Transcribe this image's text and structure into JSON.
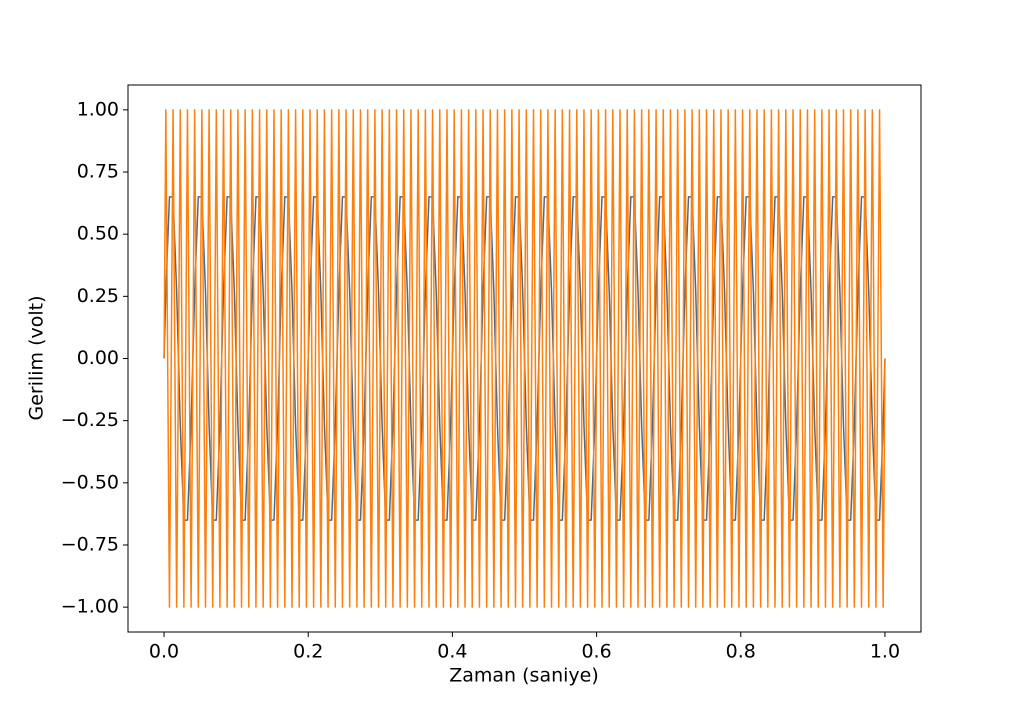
{
  "chart_data": {
    "type": "line",
    "x_label": "Zaman (saniye)",
    "y_label": "Gerilim (volt)",
    "x": [
      0,
      0.0025,
      0.0075,
      0.0125,
      0.0175,
      0.0225,
      0.0275,
      0.0325,
      0.0375,
      0.0425,
      0.0475,
      0.0525,
      0.0575,
      0.0625,
      0.0675,
      0.0725,
      0.0775,
      0.0825,
      0.0875,
      0.0925,
      0.0975,
      0.1025,
      0.1075,
      0.1125,
      0.1175,
      0.1225,
      0.1275,
      0.1325,
      0.1375,
      0.1425,
      0.1475,
      0.1525,
      0.1575,
      0.1625,
      0.1675,
      0.1725,
      0.1775,
      0.1825,
      0.1875,
      0.1925,
      0.1975,
      0.2025,
      0.2075,
      0.2125,
      0.2175,
      0.2225,
      0.2275,
      0.2325,
      0.2375,
      0.2425,
      0.2475,
      0.2525,
      0.2575,
      0.2625,
      0.2675,
      0.2725,
      0.2775,
      0.2825,
      0.2875,
      0.2925,
      0.2975,
      0.3025,
      0.3075,
      0.3125,
      0.3175,
      0.3225,
      0.3275,
      0.3325,
      0.3375,
      0.3425,
      0.3475,
      0.3525,
      0.3575,
      0.3625,
      0.3675,
      0.3725,
      0.3775,
      0.3825,
      0.3875,
      0.3925,
      0.3975,
      0.4025,
      0.4075,
      0.4125,
      0.4175,
      0.4225,
      0.4275,
      0.4325,
      0.4375,
      0.4425,
      0.4475,
      0.4525,
      0.4575,
      0.4625,
      0.4675,
      0.4725,
      0.4775,
      0.4825,
      0.4875,
      0.4925,
      0.4975,
      0.5025,
      0.5075,
      0.5125,
      0.5175,
      0.5225,
      0.5275,
      0.5325,
      0.5375,
      0.5425,
      0.5475,
      0.5525,
      0.5575,
      0.5625,
      0.5675,
      0.5725,
      0.5775,
      0.5825,
      0.5875,
      0.5925,
      0.5975,
      0.6025,
      0.6075,
      0.6125,
      0.6175,
      0.6225,
      0.6275,
      0.6325,
      0.6375,
      0.6425,
      0.6475,
      0.6525,
      0.6575,
      0.6625,
      0.6675,
      0.6725,
      0.6775,
      0.6825,
      0.6875,
      0.6925,
      0.6975,
      0.7025,
      0.7075,
      0.7125,
      0.7175,
      0.7225,
      0.7275,
      0.7325,
      0.7375,
      0.7425,
      0.7475,
      0.7525,
      0.7575,
      0.7625,
      0.7675,
      0.7725,
      0.7775,
      0.7825,
      0.7875,
      0.7925,
      0.7975,
      0.8025,
      0.8075,
      0.8125,
      0.8175,
      0.8225,
      0.8275,
      0.8325,
      0.8375,
      0.8425,
      0.8475,
      0.8525,
      0.8575,
      0.8625,
      0.8675,
      0.8725,
      0.8775,
      0.8825,
      0.8875,
      0.8925,
      0.8975,
      0.9025,
      0.9075,
      0.9125,
      0.9175,
      0.9225,
      0.9275,
      0.9325,
      0.9375,
      0.9425,
      0.9475,
      0.9525,
      0.9575,
      0.9625,
      0.9675,
      0.9725,
      0.9775,
      0.9825,
      0.9875,
      0.9925,
      0.9975,
      1
    ],
    "series": [
      {
        "color": "#4a6a8a",
        "values": [
          0,
          0.27,
          0.65,
          0.65,
          0.27,
          -0.27,
          -0.65,
          -0.65,
          -0.27,
          0.27,
          0.65,
          0.65,
          0.27,
          -0.27,
          -0.65,
          -0.65,
          -0.27,
          0.27,
          0.65,
          0.65,
          0.27,
          -0.27,
          -0.65,
          -0.65,
          -0.27,
          0.27,
          0.65,
          0.65,
          0.27,
          -0.27,
          -0.65,
          -0.65,
          -0.27,
          0.27,
          0.65,
          0.65,
          0.27,
          -0.27,
          -0.65,
          -0.65,
          -0.27,
          0.27,
          0.65,
          0.65,
          0.27,
          -0.27,
          -0.65,
          -0.65,
          -0.27,
          0.27,
          0.65,
          0.65,
          0.27,
          -0.27,
          -0.65,
          -0.65,
          -0.27,
          0.27,
          0.65,
          0.65,
          0.27,
          -0.27,
          -0.65,
          -0.65,
          -0.27,
          0.27,
          0.65,
          0.65,
          0.27,
          -0.27,
          -0.65,
          -0.65,
          -0.27,
          0.27,
          0.65,
          0.65,
          0.27,
          -0.27,
          -0.65,
          -0.65,
          -0.27,
          0.27,
          0.65,
          0.65,
          0.27,
          -0.27,
          -0.65,
          -0.65,
          -0.27,
          0.27,
          0.65,
          0.65,
          0.27,
          -0.27,
          -0.65,
          -0.65,
          -0.27,
          0.27,
          0.65,
          0.65,
          0.27,
          -0.27,
          -0.65,
          -0.65,
          -0.27,
          0.27,
          0.65,
          0.65,
          0.27,
          -0.27,
          -0.65,
          -0.65,
          -0.27,
          0.27,
          0.65,
          0.65,
          0.27,
          -0.27,
          -0.65,
          -0.65,
          -0.27,
          0.27,
          0.65,
          0.65,
          0.27,
          -0.27,
          -0.65,
          -0.65,
          -0.27,
          0.27,
          0.65,
          0.65,
          0.27,
          -0.27,
          -0.65,
          -0.65,
          -0.27,
          0.27,
          0.65,
          0.65,
          0.27,
          -0.27,
          -0.65,
          -0.65,
          -0.27,
          0.27,
          0.65,
          0.65,
          0.27,
          -0.27,
          -0.65,
          -0.65,
          -0.27,
          0.27,
          0.65,
          0.65,
          0.27,
          -0.27,
          -0.65,
          -0.65,
          -0.27,
          0.27,
          0.65,
          0.65,
          0.27,
          -0.27,
          -0.65,
          -0.65,
          -0.27,
          0.27,
          0.65,
          0.65,
          0.27,
          -0.27,
          -0.65,
          -0.65,
          -0.27,
          0.27,
          0.65,
          0.65,
          0.27,
          -0.27,
          -0.65,
          -0.65,
          -0.27,
          0.27,
          0.65,
          0.65,
          0.27,
          -0.27,
          -0.65,
          -0.65,
          -0.27,
          0.27,
          0.65,
          0.65,
          0.27,
          -0.27,
          -0.65,
          -0.65,
          -0.27,
          0
        ],
        "width": 1.5
      },
      {
        "color": "#ff7f0e",
        "values": [
          0,
          1,
          -1,
          1,
          -1,
          1,
          -1,
          1,
          -1,
          1,
          -1,
          1,
          -1,
          1,
          -1,
          1,
          -1,
          1,
          -1,
          1,
          -1,
          1,
          -1,
          1,
          -1,
          1,
          -1,
          1,
          -1,
          1,
          -1,
          1,
          -1,
          1,
          -1,
          1,
          -1,
          1,
          -1,
          1,
          -1,
          1,
          -1,
          1,
          -1,
          1,
          -1,
          1,
          -1,
          1,
          -1,
          1,
          -1,
          1,
          -1,
          1,
          -1,
          1,
          -1,
          1,
          -1,
          1,
          -1,
          1,
          -1,
          1,
          -1,
          1,
          -1,
          1,
          -1,
          1,
          -1,
          1,
          -1,
          1,
          -1,
          1,
          -1,
          1,
          -1,
          1,
          -1,
          1,
          -1,
          1,
          -1,
          1,
          -1,
          1,
          -1,
          1,
          -1,
          1,
          -1,
          1,
          -1,
          1,
          -1,
          1,
          -1,
          1,
          -1,
          1,
          -1,
          1,
          -1,
          1,
          -1,
          1,
          -1,
          1,
          -1,
          1,
          -1,
          1,
          -1,
          1,
          -1,
          1,
          -1,
          1,
          -1,
          1,
          -1,
          1,
          -1,
          1,
          -1,
          1,
          -1,
          1,
          -1,
          1,
          -1,
          1,
          -1,
          1,
          -1,
          1,
          -1,
          1,
          -1,
          1,
          -1,
          1,
          -1,
          1,
          -1,
          1,
          -1,
          1,
          -1,
          1,
          -1,
          1,
          -1,
          1,
          -1,
          1,
          -1,
          1,
          -1,
          1,
          -1,
          1,
          -1,
          1,
          -1,
          1,
          -1,
          1,
          -1,
          1,
          -1,
          1,
          -1,
          1,
          -1,
          1,
          -1,
          1,
          -1,
          1,
          -1,
          1,
          -1,
          1,
          -1,
          1,
          -1,
          1,
          -1,
          1,
          -1,
          1,
          -1,
          1,
          -1,
          1,
          -1,
          0
        ],
        "width": 1.5
      }
    ],
    "xlim": [
      -0.05,
      1.05
    ],
    "ylim": [
      -1.1,
      1.1
    ],
    "xticks": [
      {
        "value": 0,
        "label": "0.0"
      },
      0.2,
      0.4,
      0.6,
      0.8,
      {
        "value": 1,
        "label": "1.0"
      }
    ],
    "yticks": [
      {
        "value": -1,
        "label": "−1.00"
      },
      {
        "value": -0.75,
        "label": "−0.75"
      },
      {
        "value": -0.5,
        "label": "−0.50"
      },
      {
        "value": -0.25,
        "label": "−0.25"
      },
      {
        "value": 0,
        "label": "0.00"
      },
      0.25,
      {
        "value": 0.5,
        "label": "0.50"
      },
      0.75,
      {
        "value": 1,
        "label": "1.00"
      }
    ]
  }
}
